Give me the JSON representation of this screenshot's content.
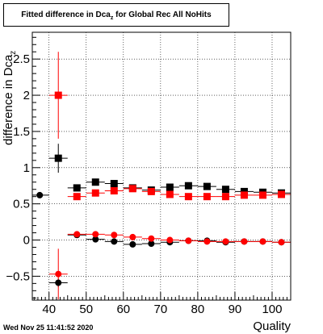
{
  "title": {
    "main": "Fitted difference in Dca",
    "sub": "z",
    "rest": " for Global Rec All NoHits"
  },
  "datestamp": "Wed Nov 25 11:41:52 2020",
  "chart_data": {
    "type": "scatter",
    "xlabel": "Quality",
    "ylabel": {
      "main": "difference in Dca",
      "sub": "z"
    },
    "xlim": [
      35.5,
      105
    ],
    "ylim": [
      -0.83,
      2.87
    ],
    "xticks": [
      40,
      50,
      60,
      70,
      80,
      90,
      100
    ],
    "yticks": [
      -0.5,
      0,
      0.5,
      1,
      1.5,
      2,
      2.5
    ],
    "ytick_labels": [
      "−0.5",
      "0",
      "0.5",
      "1",
      "1.5",
      "2",
      "2.5"
    ],
    "series": [
      {
        "color": "#000000",
        "marker": "square",
        "x": [
          42.5,
          47.5,
          52.5,
          57.5,
          62.5,
          67.5,
          72.5,
          77.5,
          82.5,
          87.5,
          92.5,
          97.5,
          102.5
        ],
        "y": [
          1.13,
          0.72,
          0.8,
          0.78,
          0.72,
          0.69,
          0.73,
          0.75,
          0.74,
          0.7,
          0.67,
          0.66,
          0.65
        ],
        "yerr": [
          0.2,
          0.04,
          0.03,
          0.03,
          0.02,
          0.02,
          0.02,
          0.02,
          0.02,
          0.02,
          0.02,
          0.02,
          0.02
        ]
      },
      {
        "color": "#ff0000",
        "marker": "square",
        "x": [
          42.5,
          47.5,
          52.5,
          57.5,
          62.5,
          67.5,
          72.5,
          77.5,
          82.5,
          87.5,
          92.5,
          97.5,
          102.5
        ],
        "y": [
          2.0,
          0.6,
          0.65,
          0.68,
          0.71,
          0.67,
          0.63,
          0.6,
          0.6,
          0.6,
          0.62,
          0.62,
          0.63
        ],
        "yerr": [
          0.6,
          0.04,
          0.03,
          0.03,
          0.02,
          0.02,
          0.02,
          0.02,
          0.02,
          0.02,
          0.02,
          0.02,
          0.02
        ]
      },
      {
        "color": "#000000",
        "marker": "circle",
        "x": [
          37.5,
          42.5,
          47.5,
          52.5,
          57.5,
          62.5,
          67.5,
          72.5,
          77.5,
          82.5,
          87.5,
          92.5,
          97.5,
          102.5
        ],
        "y": [
          0.62,
          -0.59,
          0.07,
          0.01,
          -0.02,
          -0.06,
          -0.05,
          -0.03,
          -0.01,
          -0.01,
          -0.03,
          -0.02,
          -0.02,
          -0.03
        ],
        "yerr": [
          0.0,
          0.06,
          0.03,
          0.02,
          0.02,
          0.02,
          0.02,
          0.02,
          0.02,
          0.02,
          0.02,
          0.02,
          0.02,
          0.02
        ]
      },
      {
        "color": "#ff0000",
        "marker": "circle",
        "x": [
          42.5,
          47.5,
          52.5,
          57.5,
          62.5,
          67.5,
          72.5,
          77.5,
          82.5,
          87.5,
          92.5,
          97.5,
          102.5
        ],
        "y": [
          -0.47,
          0.08,
          0.08,
          0.07,
          0.04,
          0.02,
          0.0,
          -0.01,
          -0.02,
          -0.02,
          -0.02,
          -0.02,
          -0.03
        ],
        "yerr": [
          0.35,
          0.03,
          0.02,
          0.02,
          0.02,
          0.02,
          0.02,
          0.02,
          0.02,
          0.02,
          0.02,
          0.02,
          0.02
        ]
      }
    ]
  }
}
